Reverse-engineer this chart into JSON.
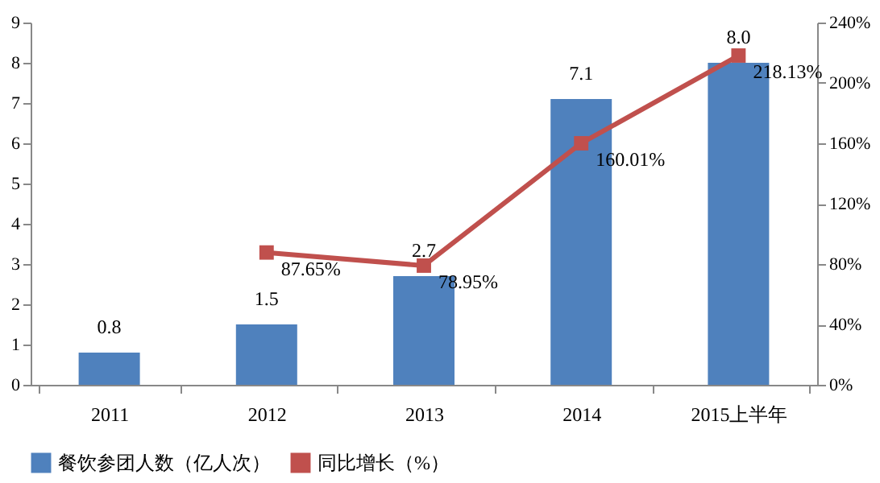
{
  "chart_data": {
    "type": "bar",
    "categories": [
      "2011",
      "2012",
      "2013",
      "2014",
      "2015上半年"
    ],
    "series": [
      {
        "name": "餐饮参团人数（亿人次）",
        "color": "#4f81bd",
        "values": [
          0.8,
          1.5,
          2.7,
          7.1,
          8.0
        ],
        "value_labels": [
          "0.8",
          "1.5",
          "2.7",
          "7.1",
          "8.0"
        ]
      },
      {
        "name": "同比增长（%）",
        "type": "line",
        "axis": "y2",
        "color": "#c0504d",
        "values": [
          null,
          87.65,
          78.95,
          160.01,
          218.13
        ],
        "value_labels": [
          null,
          "87.65%",
          "78.95%",
          "160.01%",
          "218.13%"
        ]
      }
    ],
    "ylim": [
      0,
      9
    ],
    "yticks": [
      0,
      1,
      2,
      3,
      4,
      5,
      6,
      7,
      8,
      9
    ],
    "y2lim": [
      0,
      240
    ],
    "y2ticks": [
      {
        "value": 0,
        "label": "0%"
      },
      {
        "value": 40,
        "label": "40%"
      },
      {
        "value": 80,
        "label": "80%"
      },
      {
        "value": 120,
        "label": "120%"
      },
      {
        "value": 160,
        "label": "160%"
      },
      {
        "value": 200,
        "label": "200%"
      },
      {
        "value": 240,
        "label": "240%"
      }
    ],
    "grid": false,
    "legend": "bottom",
    "marker": "square",
    "line_style": "solid"
  }
}
